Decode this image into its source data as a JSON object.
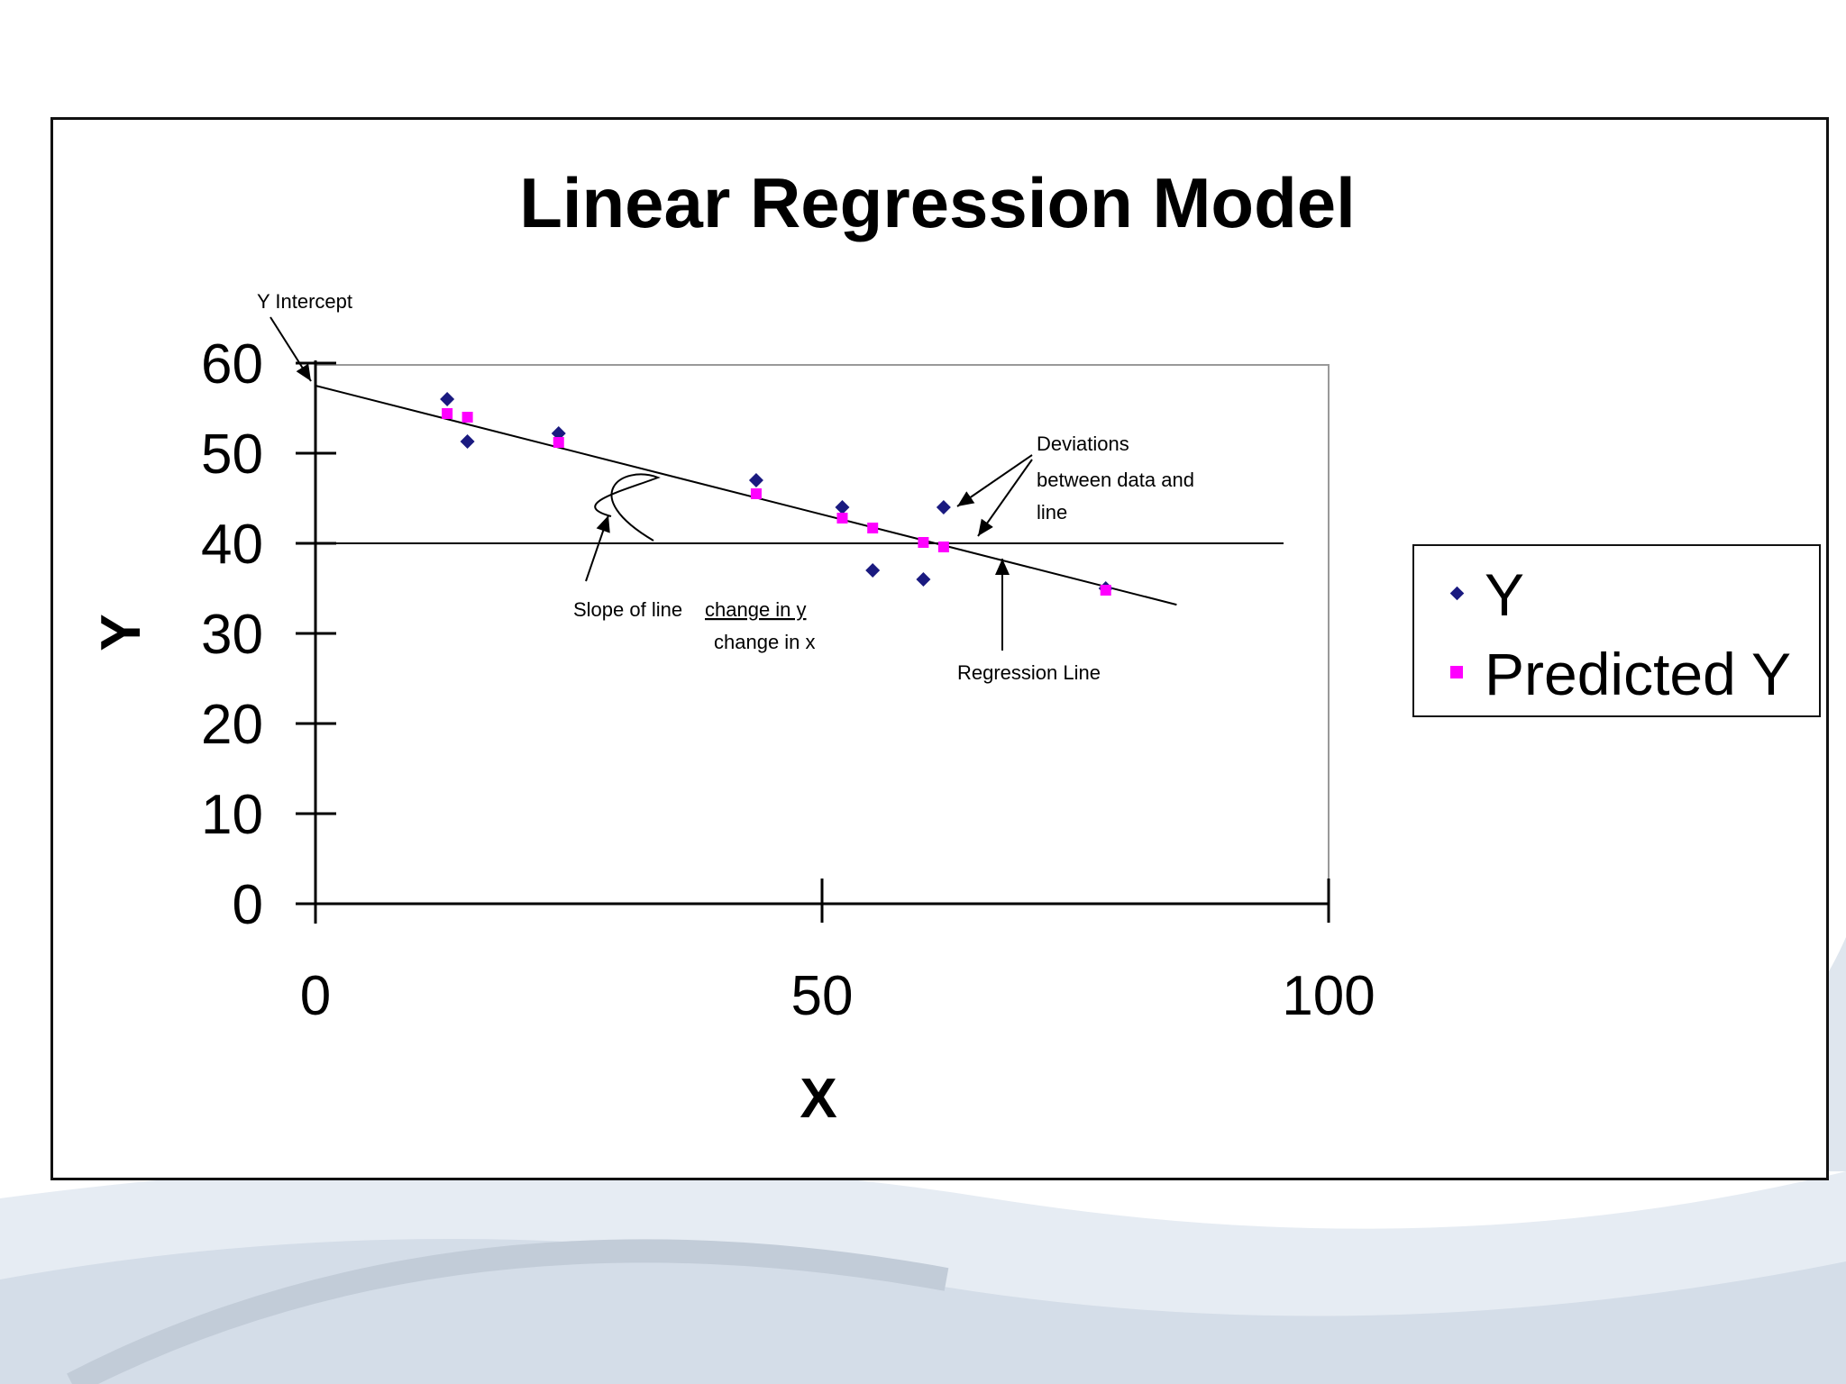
{
  "chart_data": {
    "type": "scatter",
    "title": "Linear Regression Model",
    "xlabel": "X",
    "ylabel": "Y",
    "xlim": [
      0,
      100
    ],
    "ylim": [
      0,
      60
    ],
    "xticks": [
      "0",
      "50",
      "100"
    ],
    "yticks": [
      "0",
      "10",
      "20",
      "30",
      "40",
      "50",
      "60"
    ],
    "horizontal_reference_y": 40,
    "regression_line": {
      "intercept": 57.5,
      "slope": -0.286,
      "x_start": 0,
      "x_end": 85
    },
    "series": [
      {
        "name": "Y",
        "marker": "diamond",
        "color": "#1a1a80",
        "points": [
          [
            13,
            56
          ],
          [
            15,
            51.3
          ],
          [
            24,
            52.2
          ],
          [
            43.5,
            47
          ],
          [
            52,
            44
          ],
          [
            55,
            37
          ],
          [
            60,
            36
          ],
          [
            62,
            44
          ],
          [
            78,
            35
          ]
        ]
      },
      {
        "name": "Predicted Y",
        "marker": "square",
        "color": "#ff00ff",
        "points": [
          [
            13,
            54.4
          ],
          [
            15,
            54
          ],
          [
            24,
            51.2
          ],
          [
            43.5,
            45.5
          ],
          [
            52,
            42.8
          ],
          [
            55,
            41.7
          ],
          [
            60,
            40.1
          ],
          [
            62,
            39.6
          ],
          [
            78,
            34.8
          ]
        ]
      }
    ],
    "legend": {
      "position": "right",
      "entries": [
        "Y",
        "Predicted Y"
      ]
    },
    "annotations": [
      {
        "name": "y-intercept",
        "lines": [
          "Y Intercept"
        ]
      },
      {
        "name": "deviations",
        "lines": [
          "Deviations",
          "between data and",
          "line"
        ]
      },
      {
        "name": "slope",
        "lines": [
          "Slope of line",
          "change in y",
          "change in x"
        ]
      },
      {
        "name": "regression-line",
        "lines": [
          "Regression Line"
        ]
      }
    ]
  }
}
